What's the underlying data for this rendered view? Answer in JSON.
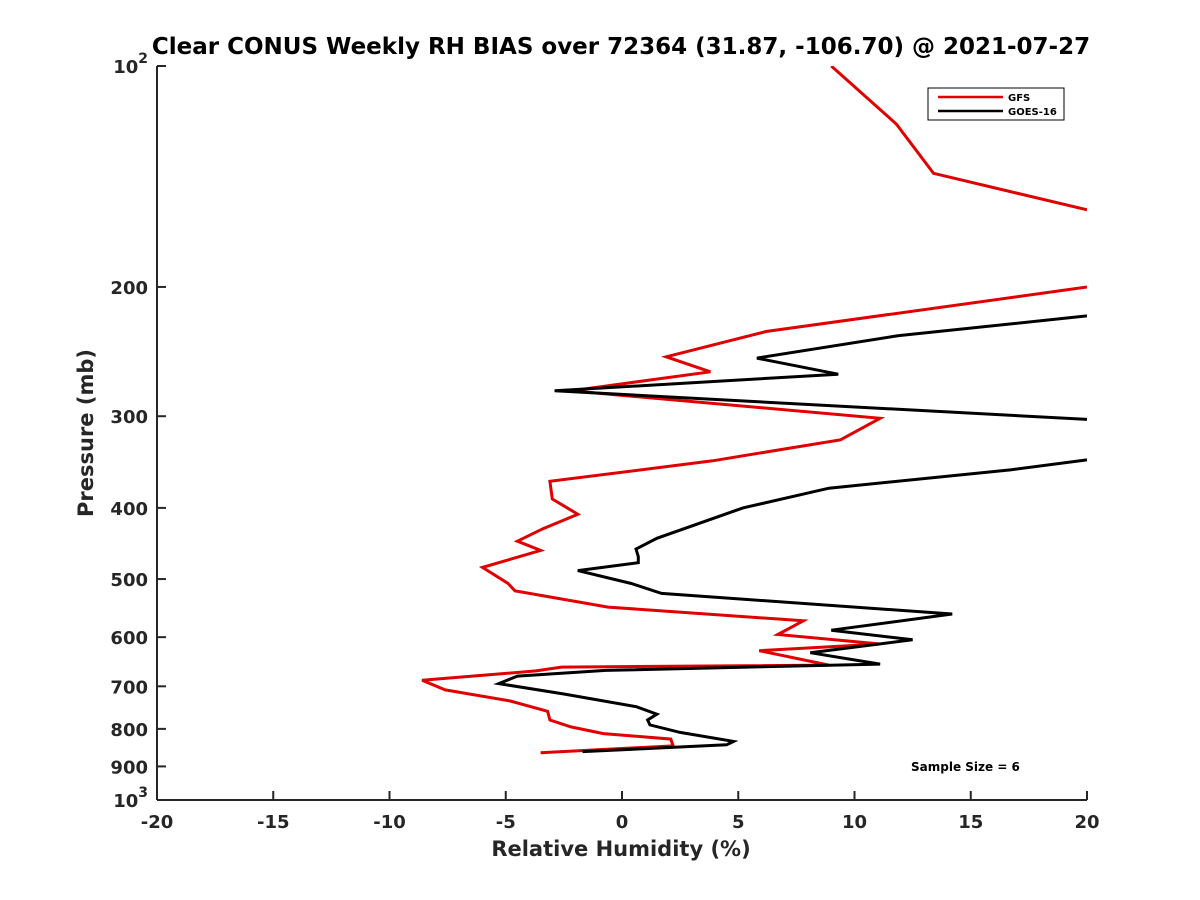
{
  "chart_data": {
    "type": "line",
    "orientation": "profile",
    "title": "Clear CONUS Weekly RH BIAS over 72364 (31.87, -106.70) @ 2021-07-27",
    "xlabel": "Relative Humidity (%)",
    "ylabel": "Pressure (mb)",
    "xlim": [
      -20,
      20
    ],
    "ylim": [
      100,
      1000
    ],
    "y_scale": "log",
    "y_reversed": true,
    "grid": false,
    "legend_position": "top-right",
    "x_ticks": [
      "-20",
      "-15",
      "-10",
      "-5",
      "0",
      "5",
      "10",
      "15",
      "20"
    ],
    "y_ticks": [
      {
        "value": 100,
        "base": "10",
        "exp": "2"
      },
      {
        "value": 200,
        "label": "200"
      },
      {
        "value": 300,
        "label": "300"
      },
      {
        "value": 400,
        "label": "400"
      },
      {
        "value": 500,
        "label": "500"
      },
      {
        "value": 600,
        "label": "600"
      },
      {
        "value": 700,
        "label": "700"
      },
      {
        "value": 800,
        "label": "800"
      },
      {
        "value": 900,
        "label": "900"
      },
      {
        "value": 1000,
        "base": "10",
        "exp": "3"
      }
    ],
    "series": [
      {
        "name": "GFS",
        "color": "#e00000",
        "points": [
          [
            -3.5,
            862
          ],
          [
            2.2,
            844
          ],
          [
            2.1,
            826
          ],
          [
            -0.8,
            812
          ],
          [
            -2.2,
            795
          ],
          [
            -3.1,
            778
          ],
          [
            -3.2,
            757
          ],
          [
            -4.8,
            733
          ],
          [
            -7.6,
            708
          ],
          [
            -8.6,
            687
          ],
          [
            -3.7,
            667
          ],
          [
            -2.6,
            659
          ],
          [
            8.9,
            655
          ],
          [
            5.9,
            626
          ],
          [
            11.1,
            613
          ],
          [
            6.7,
            595
          ],
          [
            7.8,
            570
          ],
          [
            -0.6,
            546
          ],
          [
            -4.6,
            519
          ],
          [
            -4.9,
            507
          ],
          [
            -6.0,
            482
          ],
          [
            -3.5,
            457
          ],
          [
            -4.5,
            444
          ],
          [
            -3.4,
            427
          ],
          [
            -1.9,
            408
          ],
          [
            -3.0,
            389
          ],
          [
            -3.1,
            368
          ],
          [
            3.9,
            345
          ],
          [
            9.4,
            323
          ],
          [
            11.1,
            302
          ],
          [
            -2.2,
            277
          ],
          [
            3.8,
            261
          ],
          [
            1.9,
            249
          ],
          [
            6.2,
            230
          ],
          [
            20.0,
            200
          ]
        ]
      },
      {
        "name": "GFS",
        "color": "#e00000",
        "points": [
          [
            20.0,
            157
          ],
          [
            13.4,
            140
          ],
          [
            11.8,
            120
          ],
          [
            9.0,
            100
          ]
        ]
      },
      {
        "name": "GOES-16",
        "color": "#000000",
        "points": [
          [
            -1.7,
            859
          ],
          [
            4.5,
            841
          ],
          [
            4.8,
            832
          ],
          [
            2.5,
            809
          ],
          [
            1.2,
            790
          ],
          [
            1.1,
            778
          ],
          [
            1.5,
            764
          ],
          [
            0.6,
            746
          ],
          [
            -2.5,
            717
          ],
          [
            -5.3,
            694
          ],
          [
            -4.5,
            678
          ],
          [
            -0.7,
            666
          ],
          [
            11.1,
            653
          ],
          [
            8.1,
            630
          ],
          [
            12.5,
            605
          ],
          [
            9.0,
            587
          ],
          [
            14.2,
            558
          ],
          [
            1.7,
            523
          ],
          [
            0.4,
            507
          ],
          [
            -1.9,
            487
          ],
          [
            0.7,
            475
          ],
          [
            0.7,
            466
          ],
          [
            0.6,
            455
          ],
          [
            1.5,
            440
          ],
          [
            5.2,
            400
          ],
          [
            8.9,
            376
          ],
          [
            16.7,
            355
          ],
          [
            20.0,
            344
          ]
        ]
      },
      {
        "name": "GOES-16",
        "color": "#000000",
        "points": [
          [
            20.0,
            303
          ],
          [
            -2.9,
            277
          ],
          [
            9.3,
            263
          ],
          [
            5.8,
            250
          ],
          [
            11.9,
            233
          ],
          [
            20.0,
            219
          ]
        ]
      }
    ],
    "legend": [
      {
        "label": "GFS",
        "color": "#e00000"
      },
      {
        "label": "GOES-16",
        "color": "#000000"
      }
    ],
    "annotation": "Sample Size = 6"
  }
}
